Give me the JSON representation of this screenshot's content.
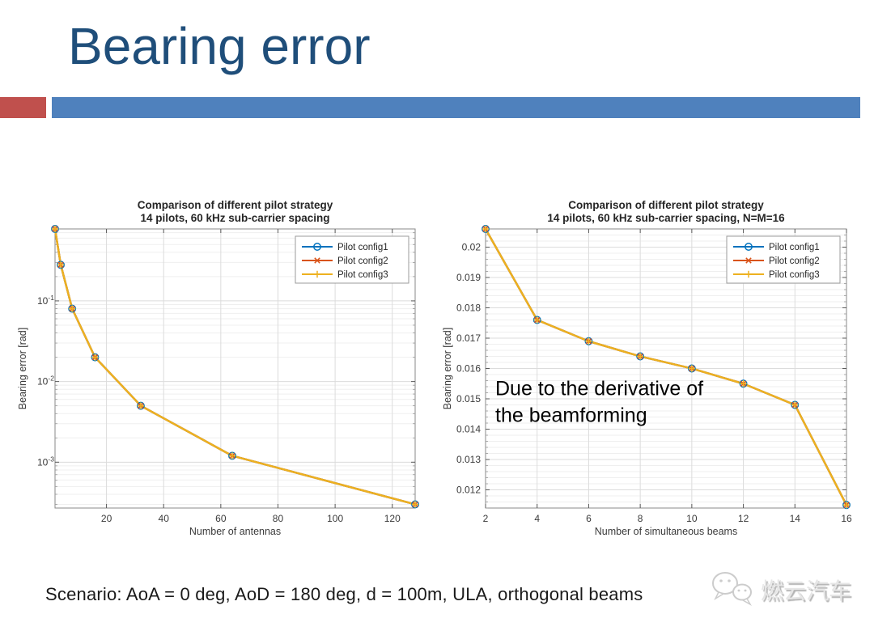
{
  "header": {
    "title": "Bearing error"
  },
  "accents": {
    "red": "#c0504d",
    "blue": "#4f81bd"
  },
  "colors": {
    "title": "#1f4e7a",
    "matlab_blue": "#0072BD",
    "matlab_orange": "#D95319",
    "matlab_yellow": "#EDB120"
  },
  "footer": {
    "scenario": "Scenario: AoA = 0 deg, AoD = 180 deg, d = 100m, ULA, orthogonal beams"
  },
  "watermark": {
    "icon": "wechat-icon",
    "text": "燃云汽车"
  },
  "chart_data": [
    {
      "type": "line",
      "title_lines": [
        "Comparison of different pilot strategy",
        "14 pilots, 60 kHz sub-carrier spacing"
      ],
      "xlabel": "Number of antennas",
      "ylabel": "Bearing error [rad]",
      "x_scale": "linear",
      "y_scale": "log",
      "grid": true,
      "legend_position": "top-right",
      "margin_left": 48,
      "margin_right": 22,
      "xlim": [
        2,
        128
      ],
      "ylim": [
        0.00027,
        0.78
      ],
      "x_ticks": [
        {
          "v": 20,
          "label": "20"
        },
        {
          "v": 40,
          "label": "40"
        },
        {
          "v": 60,
          "label": "60"
        },
        {
          "v": 80,
          "label": "80"
        },
        {
          "v": 100,
          "label": "100"
        },
        {
          "v": 120,
          "label": "120"
        }
      ],
      "y_ticks": [
        {
          "v": 0.1,
          "base": "10",
          "exp": "-1"
        },
        {
          "v": 0.01,
          "base": "10",
          "exp": "-2"
        },
        {
          "v": 0.001,
          "base": "10",
          "exp": "-3"
        }
      ],
      "x": [
        2,
        4,
        8,
        16,
        32,
        64,
        128
      ],
      "series": [
        {
          "name": "Pilot config1",
          "color": "#0072BD",
          "marker": "circle",
          "values": [
            0.78,
            0.28,
            0.08,
            0.02,
            0.005,
            0.0012,
            0.0003
          ]
        },
        {
          "name": "Pilot config2",
          "color": "#D95319",
          "marker": "x",
          "values": [
            0.78,
            0.28,
            0.08,
            0.02,
            0.005,
            0.0012,
            0.0003
          ]
        },
        {
          "name": "Pilot config3",
          "color": "#EDB120",
          "marker": "plus",
          "values": [
            0.78,
            0.28,
            0.08,
            0.02,
            0.005,
            0.0012,
            0.0003
          ]
        }
      ]
    },
    {
      "type": "line",
      "title_lines": [
        "Comparison of different pilot strategy",
        "14 pilots, 60 kHz sub-carrier spacing, N=M=16"
      ],
      "xlabel": "Number of simultaneous beams",
      "ylabel": "Bearing error [rad]",
      "x_scale": "linear",
      "y_scale": "linear",
      "grid": true,
      "legend_position": "top-right",
      "margin_left": 55,
      "margin_right": 14,
      "xlim": [
        2,
        16
      ],
      "ylim": [
        0.0114,
        0.0206
      ],
      "y_minor_step": 0.0002,
      "x_ticks": [
        {
          "v": 2,
          "label": "2"
        },
        {
          "v": 4,
          "label": "4"
        },
        {
          "v": 6,
          "label": "6"
        },
        {
          "v": 8,
          "label": "8"
        },
        {
          "v": 10,
          "label": "10"
        },
        {
          "v": 12,
          "label": "12"
        },
        {
          "v": 14,
          "label": "14"
        },
        {
          "v": 16,
          "label": "16"
        }
      ],
      "y_ticks": [
        {
          "v": 0.02,
          "label": "0.02"
        },
        {
          "v": 0.019,
          "label": "0.019"
        },
        {
          "v": 0.018,
          "label": "0.018"
        },
        {
          "v": 0.017,
          "label": "0.017"
        },
        {
          "v": 0.016,
          "label": "0.016"
        },
        {
          "v": 0.015,
          "label": "0.015"
        },
        {
          "v": 0.014,
          "label": "0.014"
        },
        {
          "v": 0.013,
          "label": "0.013"
        },
        {
          "v": 0.012,
          "label": "0.012"
        }
      ],
      "x": [
        2,
        4,
        6,
        8,
        10,
        12,
        14,
        16
      ],
      "series": [
        {
          "name": "Pilot config1",
          "color": "#0072BD",
          "marker": "circle",
          "values": [
            0.0206,
            0.0176,
            0.0169,
            0.0164,
            0.016,
            0.0155,
            0.0148,
            0.0115
          ]
        },
        {
          "name": "Pilot config2",
          "color": "#D95319",
          "marker": "x",
          "values": [
            0.0206,
            0.0176,
            0.0169,
            0.0164,
            0.016,
            0.0155,
            0.0148,
            0.0115
          ]
        },
        {
          "name": "Pilot config3",
          "color": "#EDB120",
          "marker": "plus",
          "values": [
            0.0206,
            0.0176,
            0.0169,
            0.0164,
            0.016,
            0.0155,
            0.0148,
            0.0115
          ]
        }
      ],
      "annotation": {
        "lines": [
          "Due to the derivative of",
          "the beamforming"
        ]
      }
    }
  ]
}
